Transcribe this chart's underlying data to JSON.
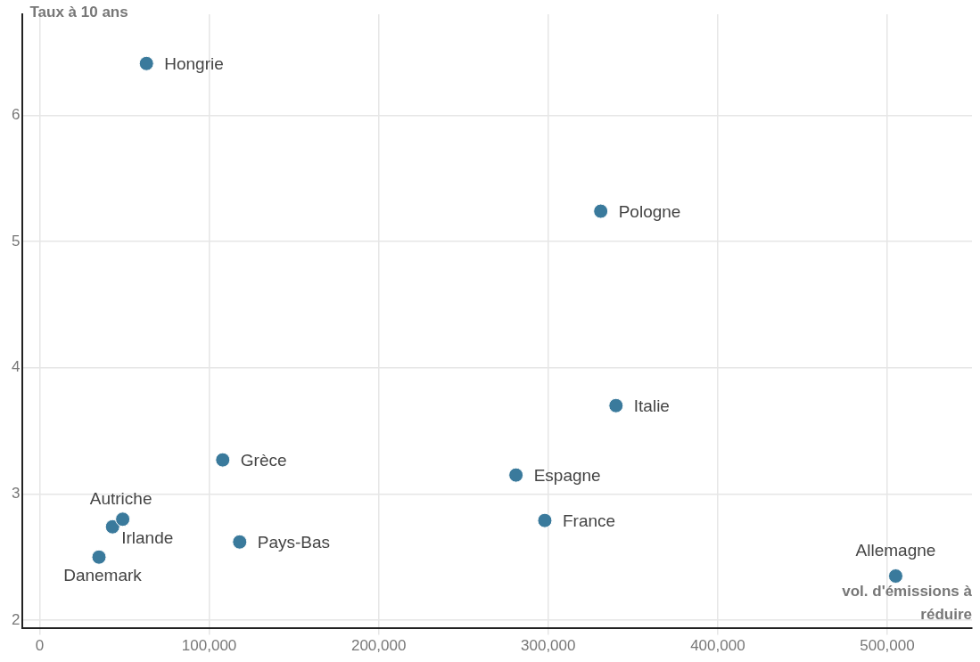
{
  "chart_data": {
    "type": "scatter",
    "xlabel": "vol. d'émissions à réduire",
    "ylabel": "Taux à 10 ans",
    "series": [
      {
        "name": "Hongrie",
        "color": "#3a7a9c",
        "x": [
          63000
        ],
        "values": [
          6.41
        ]
      },
      {
        "name": "Pologne",
        "color": "#3a7a9c",
        "x": [
          331000
        ],
        "values": [
          5.24
        ]
      },
      {
        "name": "Italie",
        "color": "#3a7a9c",
        "x": [
          340000
        ],
        "values": [
          3.7
        ]
      },
      {
        "name": "Grèce",
        "color": "#3a7a9c",
        "x": [
          108000
        ],
        "values": [
          3.27
        ]
      },
      {
        "name": "Espagne",
        "color": "#3a7a9c",
        "x": [
          281000
        ],
        "values": [
          3.15
        ]
      },
      {
        "name": "France",
        "color": "#3a7a9c",
        "x": [
          298000
        ],
        "values": [
          2.79
        ]
      },
      {
        "name": "Autriche",
        "color": "#3a7a9c",
        "x": [
          49000
        ],
        "values": [
          2.8
        ]
      },
      {
        "name": "Irlande",
        "color": "#3a7a9c",
        "x": [
          43000
        ],
        "values": [
          2.74
        ]
      },
      {
        "name": "Pays-Bas",
        "color": "#3a7a9c",
        "x": [
          118000
        ],
        "values": [
          2.62
        ]
      },
      {
        "name": "Danemark",
        "color": "#3a7a9c",
        "x": [
          35000
        ],
        "values": [
          2.5
        ]
      },
      {
        "name": "Allemagne",
        "color": "#3a7a9c",
        "x": [
          505000
        ],
        "values": [
          2.35
        ]
      }
    ],
    "xlim": [
      -10000,
      550000
    ],
    "ylim": [
      1.94,
      6.8
    ],
    "xticks": [
      0,
      {
        "value": 100000,
        "label": "100,000"
      },
      {
        "value": 200000,
        "label": "200,000"
      },
      {
        "value": 300000,
        "label": "300,000"
      },
      {
        "value": 400000,
        "label": "400,000"
      },
      {
        "value": 500000,
        "label": "500,000"
      }
    ],
    "yticks": [
      2,
      3,
      4,
      5,
      6
    ],
    "grid": true,
    "legend": false,
    "marker": "circle"
  }
}
